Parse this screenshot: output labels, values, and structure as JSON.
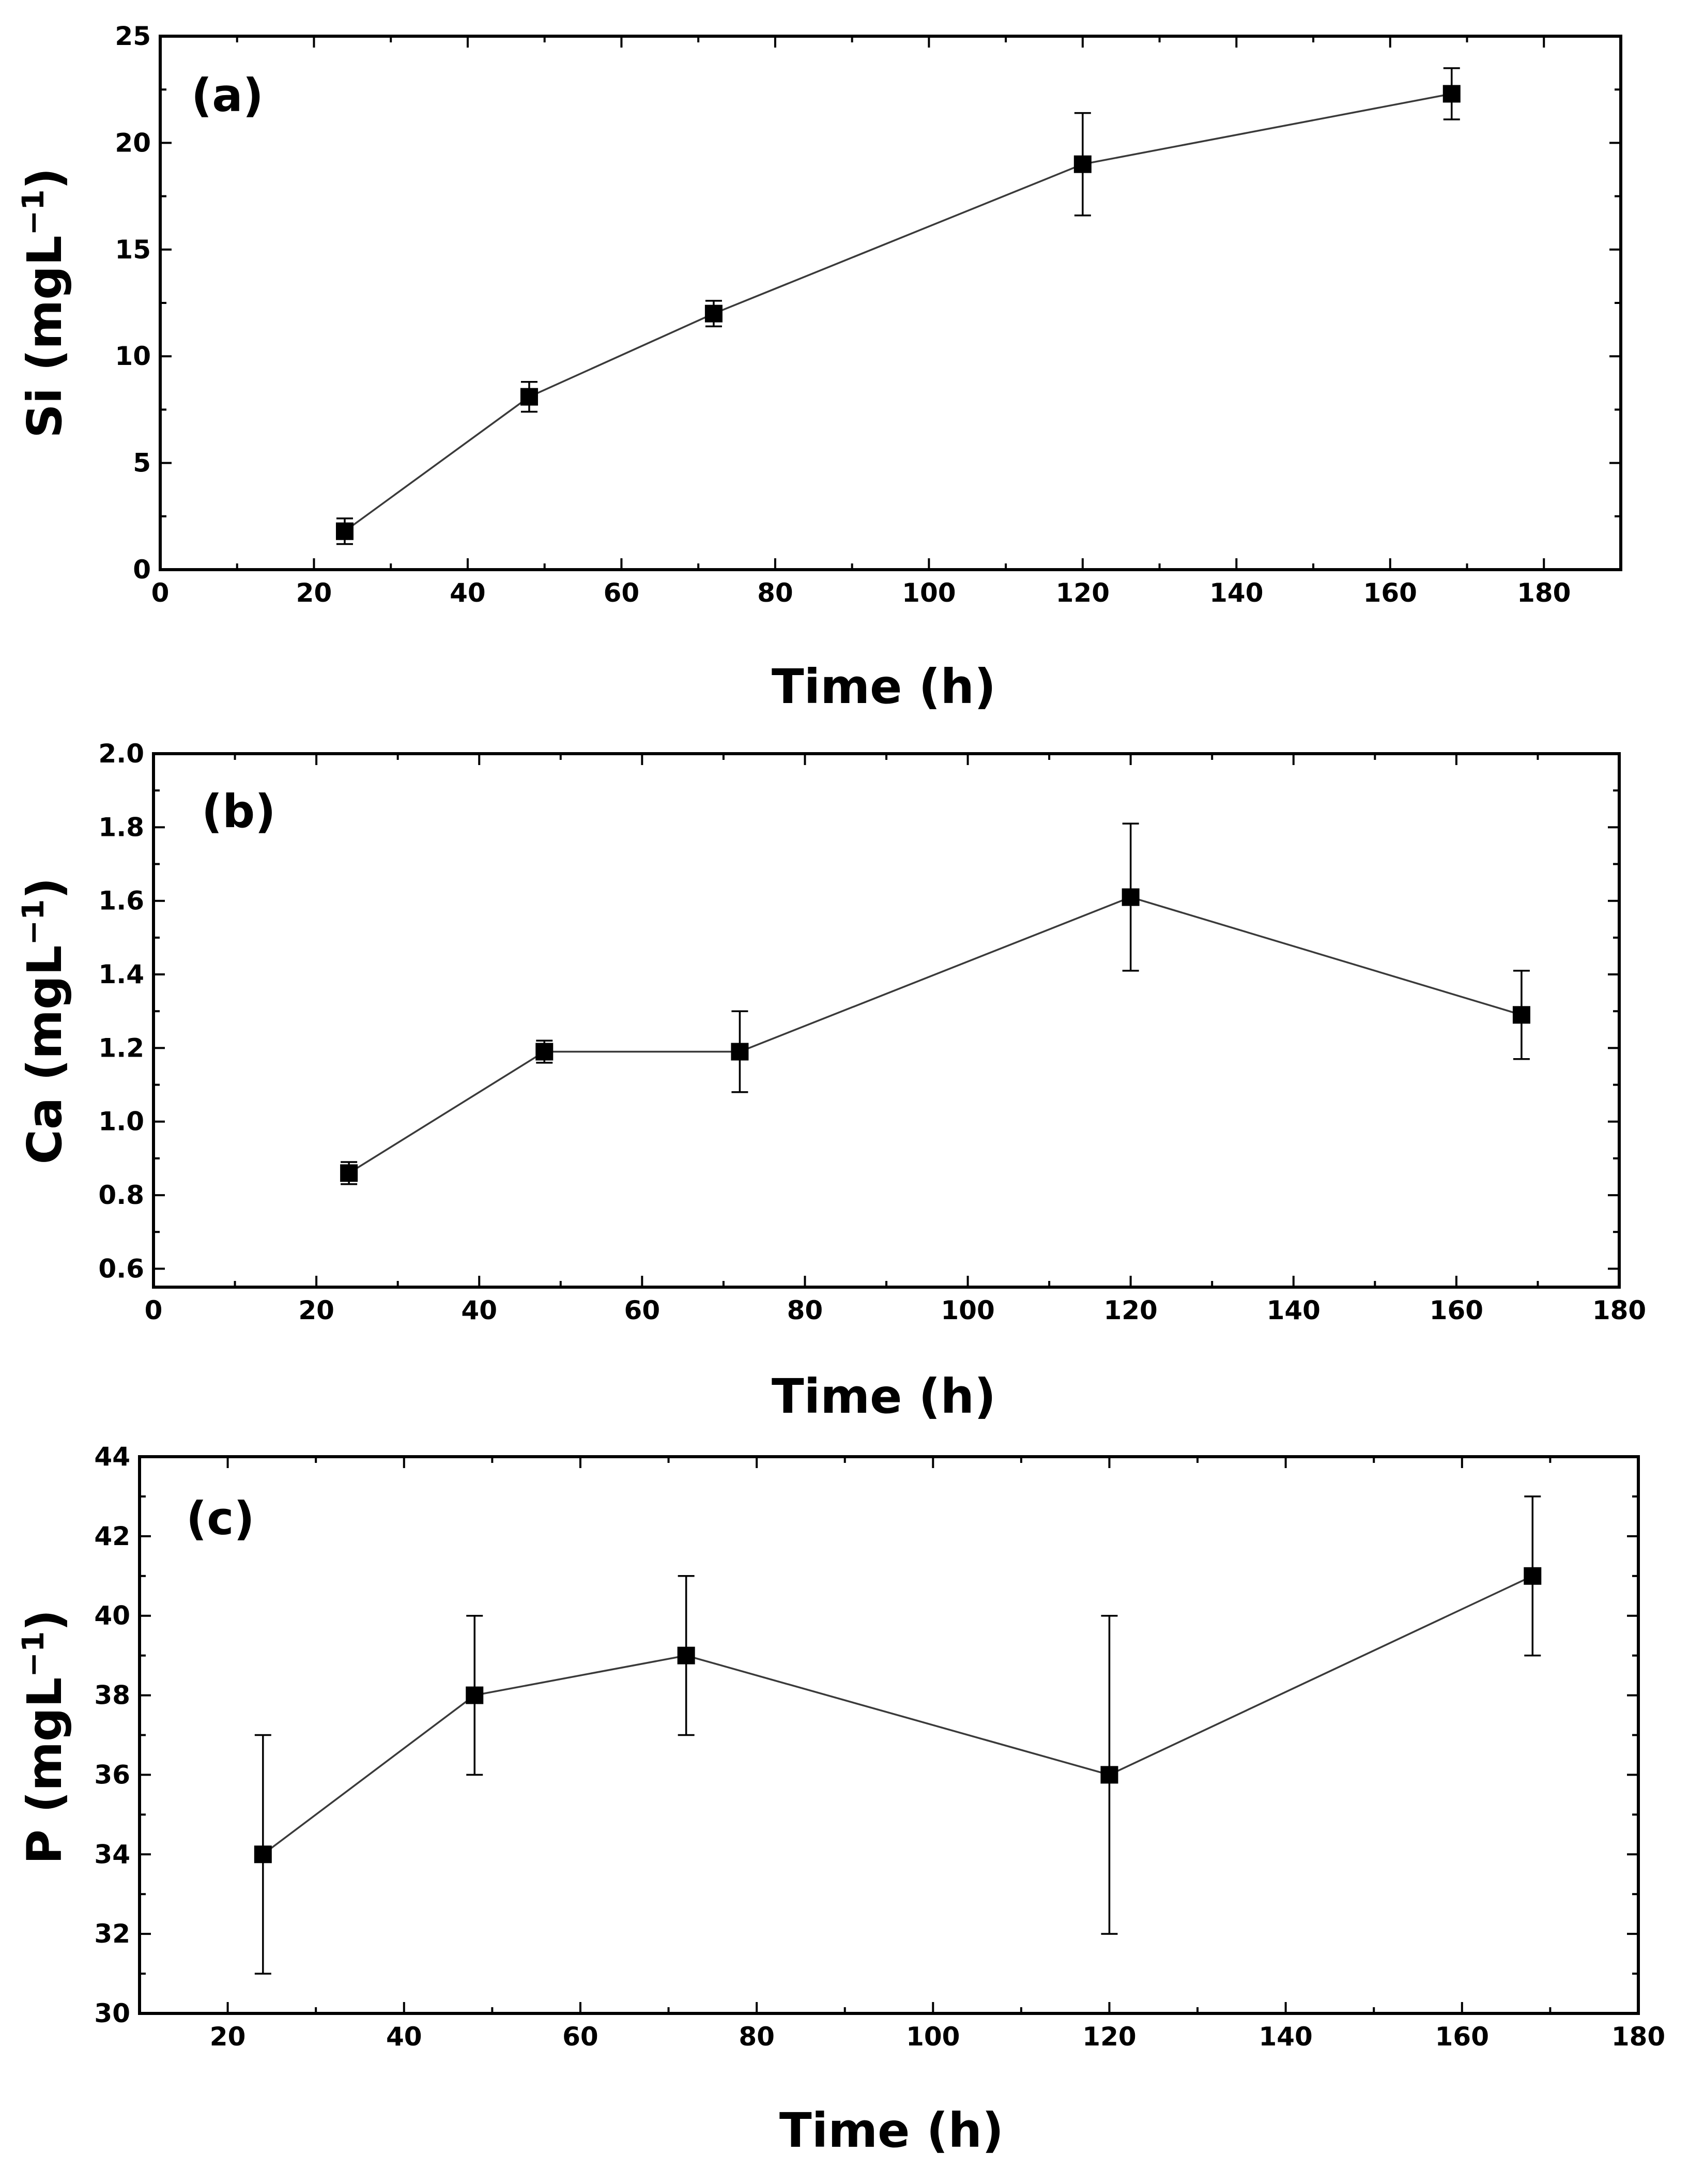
{
  "chart_data": [
    {
      "type": "line",
      "panel_label": "(a)",
      "xlabel": "Time (h)",
      "ylabel_main": "Si (mgL",
      "ylabel_exp": "−1",
      "ylabel_close": ")",
      "xlim": [
        0,
        190
      ],
      "ylim": [
        0,
        25
      ],
      "xticks": [
        0,
        20,
        40,
        60,
        80,
        100,
        120,
        140,
        160,
        180
      ],
      "xtick_labels": [
        "0",
        "20",
        "40",
        "60",
        "80",
        "100",
        "120",
        "140",
        "160",
        "180"
      ],
      "yticks": [
        0,
        5,
        10,
        15,
        20,
        25
      ],
      "ytick_labels": [
        "0",
        "5",
        "10",
        "15",
        "20",
        "25"
      ],
      "series": [
        {
          "name": "Si",
          "x": [
            24,
            48,
            72,
            120,
            168
          ],
          "y": [
            1.8,
            8.1,
            12.0,
            19.0,
            22.3
          ],
          "err": [
            0.6,
            0.7,
            0.6,
            2.4,
            1.2
          ]
        }
      ]
    },
    {
      "type": "line",
      "panel_label": "(b)",
      "xlabel": "Time (h)",
      "ylabel_main": "Ca (mgL",
      "ylabel_exp": "−1",
      "ylabel_close": ")",
      "xlim": [
        0,
        180
      ],
      "ylim": [
        0.55,
        2.0
      ],
      "xticks": [
        0,
        20,
        40,
        60,
        80,
        100,
        120,
        140,
        160,
        180
      ],
      "xtick_labels": [
        "0",
        "20",
        "40",
        "60",
        "80",
        "100",
        "120",
        "140",
        "160",
        "180"
      ],
      "yticks": [
        0.6,
        0.8,
        1.0,
        1.2,
        1.4,
        1.6,
        1.8,
        2.0
      ],
      "ytick_labels": [
        "0.6",
        "0.8",
        "1.0",
        "1.2",
        "1.4",
        "1.6",
        "1.8",
        "2.0"
      ],
      "series": [
        {
          "name": "Ca",
          "x": [
            24,
            48,
            72,
            120,
            168
          ],
          "y": [
            0.86,
            1.19,
            1.19,
            1.61,
            1.29
          ],
          "err": [
            0.03,
            0.03,
            0.11,
            0.2,
            0.12
          ]
        }
      ]
    },
    {
      "type": "line",
      "panel_label": "(c)",
      "xlabel": "Time (h)",
      "ylabel_main": "P (mgL",
      "ylabel_exp": "−1",
      "ylabel_close": ")",
      "xlim": [
        10,
        180
      ],
      "ylim": [
        30,
        44
      ],
      "xticks": [
        20,
        40,
        60,
        80,
        100,
        120,
        140,
        160,
        180
      ],
      "xtick_labels": [
        "20",
        "40",
        "60",
        "80",
        "100",
        "120",
        "140",
        "160",
        "180"
      ],
      "yticks": [
        30,
        32,
        34,
        36,
        38,
        40,
        42,
        44
      ],
      "ytick_labels": [
        "30",
        "32",
        "34",
        "36",
        "38",
        "40",
        "42",
        "44"
      ],
      "series": [
        {
          "name": "P",
          "x": [
            24,
            48,
            72,
            120,
            168
          ],
          "y": [
            34,
            38,
            39,
            36,
            41
          ],
          "err": [
            3,
            2,
            2,
            4,
            2
          ]
        }
      ]
    }
  ]
}
